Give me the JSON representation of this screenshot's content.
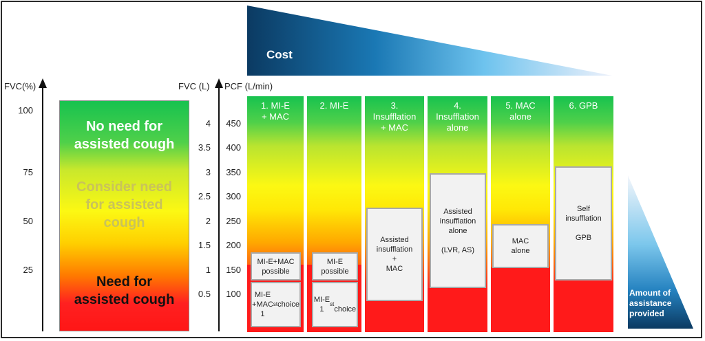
{
  "cost_label": "Cost",
  "amount_label": "Amount of\nassistance\nprovided",
  "axes": {
    "fvc_pct": {
      "label": "FVC(%)",
      "ticks": [
        "100",
        "75",
        "50",
        "25"
      ]
    },
    "fvc_l": {
      "label": "FVC (L)",
      "ticks": [
        "4",
        "3.5",
        "3",
        "2.5",
        "2",
        "1.5",
        "1",
        "0.5"
      ]
    },
    "pcf": {
      "label": "PCF (L/min)",
      "ticks": [
        "450",
        "400",
        "350",
        "300",
        "250",
        "200",
        "150",
        "100"
      ]
    }
  },
  "zones": {
    "no_need": "No need for\nassisted cough",
    "consider": "Consider need\nfor assisted\ncough",
    "need": "Need for\nassisted cough"
  },
  "columns": [
    {
      "title": "1. MI-E\n+ MAC",
      "boxes": [
        "MI-E+MAC\npossible",
        "MI-E\n+MAC\n1st choice"
      ]
    },
    {
      "title": "2. MI-E",
      "boxes": [
        "MI-E\npossible",
        "MI-E\n1st\nchoice"
      ]
    },
    {
      "title": "3.\nInsufflation\n+ MAC",
      "boxes": [
        "Assisted\ninsufflation\n+\nMAC"
      ]
    },
    {
      "title": "4.\nInsufflation\nalone",
      "boxes": [
        "Assisted\ninsufflation\nalone\n\n(LVR, AS)"
      ]
    },
    {
      "title": "5. MAC\nalone",
      "boxes": [
        "MAC\nalone"
      ]
    },
    {
      "title": "6. GPB",
      "boxes": [
        "Self\ninsufflation\n\nGPB"
      ]
    }
  ],
  "colors": {
    "cost_dark": "#0b3a62",
    "cost_light": "#eef1fb",
    "green": "#17c24f",
    "yellow": "#fcf813",
    "red": "#ff1a1a"
  }
}
